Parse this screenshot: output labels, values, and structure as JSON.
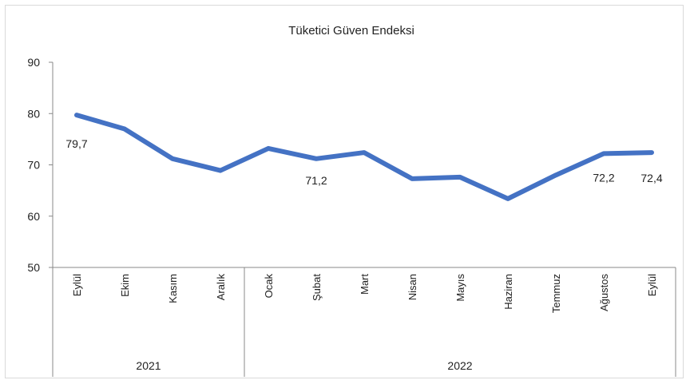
{
  "chart_data": {
    "type": "line",
    "title": "Tüketici Güven Endeksi",
    "xlabel": "",
    "ylabel": "",
    "ylim": [
      50,
      90
    ],
    "yticks": [
      50,
      60,
      70,
      80,
      90
    ],
    "grid": false,
    "legend": "none",
    "line_color": "#4472C4",
    "categories": [
      "Eylül",
      "Ekim",
      "Kasım",
      "Aralık",
      "Ocak",
      "Şubat",
      "Mart",
      "Nisan",
      "Mayıs",
      "Haziran",
      "Temmuz",
      "Ağustos",
      "Eylül"
    ],
    "groups": [
      {
        "label": "2021",
        "count": 4
      },
      {
        "label": "2022",
        "count": 9
      }
    ],
    "series": [
      {
        "values": [
          79.7,
          77.0,
          71.2,
          68.9,
          73.2,
          71.2,
          72.4,
          67.3,
          67.6,
          63.4,
          68.0,
          72.2,
          72.4
        ]
      }
    ],
    "data_labels": [
      {
        "index": 0,
        "text": "79,7"
      },
      {
        "index": 5,
        "text": "71,2"
      },
      {
        "index": 11,
        "text": "72,2"
      },
      {
        "index": 12,
        "text": "72,4"
      }
    ]
  }
}
